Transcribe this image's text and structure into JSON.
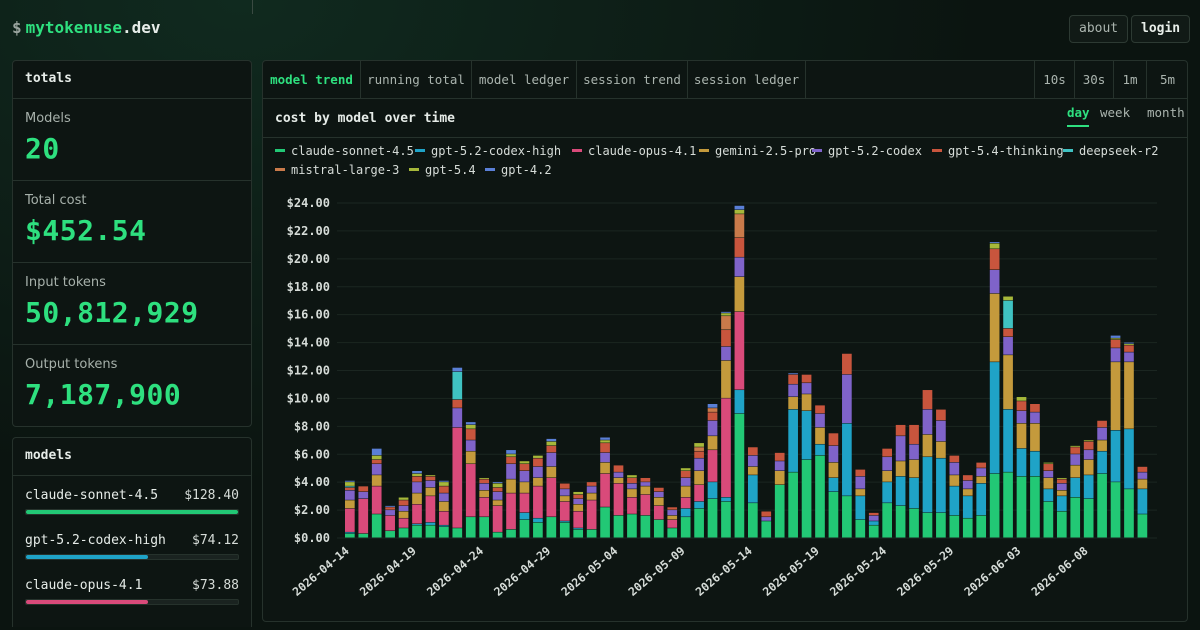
{
  "header": {
    "prompt": "$",
    "brand_name": "mytokenuse",
    "brand_tld": ".dev",
    "about_label": "about",
    "login_label": "login"
  },
  "totals": {
    "title": "totals",
    "stats": [
      {
        "label": "Models",
        "value": "20"
      },
      {
        "label": "Total cost",
        "value": "$452.54"
      },
      {
        "label": "Input tokens",
        "value": "50,812,929"
      },
      {
        "label": "Output tokens",
        "value": "7,187,900"
      }
    ]
  },
  "models_panel": {
    "title": "models",
    "items": [
      {
        "name": "claude-sonnet-4.5",
        "cost": "$128.40",
        "share": 1.0,
        "color": "#22c875"
      },
      {
        "name": "gpt-5.2-codex-high",
        "cost": "$74.12",
        "share": 0.577,
        "color": "#1fa3c7"
      },
      {
        "name": "claude-opus-4.1",
        "cost": "$73.88",
        "share": 0.575,
        "color": "#d94a7a"
      }
    ]
  },
  "tabs": [
    {
      "label": "model trend",
      "active": true
    },
    {
      "label": "running total",
      "active": false
    },
    {
      "label": "model ledger",
      "active": false
    },
    {
      "label": "session trend",
      "active": false
    },
    {
      "label": "session ledger",
      "active": false
    }
  ],
  "refresh_options": [
    "10s",
    "30s",
    "1m",
    "5m"
  ],
  "chart_panel": {
    "title": "cost by model over time",
    "ranges": [
      {
        "label": "day",
        "active": true
      },
      {
        "label": "week",
        "active": false
      },
      {
        "label": "month",
        "active": false
      }
    ]
  },
  "colors": {
    "accent": "#2ee07f",
    "background": "#0b1410",
    "panel_border": "#26322c"
  },
  "chart_data": {
    "type": "bar",
    "stacked": true,
    "title": "cost by model over time",
    "xlabel": "",
    "ylabel": "",
    "ylim": [
      0,
      24
    ],
    "y_ticks": [
      "$0.00",
      "$2.00",
      "$4.00",
      "$6.00",
      "$8.00",
      "$10.00",
      "$12.00",
      "$14.00",
      "$16.00",
      "$18.00",
      "$20.00",
      "$22.00",
      "$24.00"
    ],
    "x_tick_labels": [
      "2026-04-14",
      "2026-04-19",
      "2026-04-24",
      "2026-04-29",
      "2026-05-04",
      "2026-05-09",
      "2026-05-14",
      "2026-05-19",
      "2026-05-24",
      "2026-05-29",
      "2026-06-03",
      "2026-06-08"
    ],
    "first_date": "2026-04-14",
    "legend_position": "top",
    "grid": true,
    "series": [
      {
        "name": "claude-sonnet-4.5",
        "color": "#22c875",
        "values": [
          0.3,
          0.3,
          1.7,
          0.5,
          0.7,
          0.9,
          0.9,
          0.8,
          0.7,
          1.5,
          1.5,
          0.4,
          0.6,
          1.3,
          1.1,
          1.5,
          1.1,
          0.6,
          0.6,
          2.2,
          1.6,
          1.7,
          1.6,
          1.3,
          0.7,
          1.5,
          2.1,
          2.8,
          2.6,
          8.9,
          2.5,
          1.2,
          3.8,
          4.7,
          5.6,
          5.9,
          3.3,
          3.0,
          1.3,
          0.9,
          2.5,
          2.3,
          2.1,
          1.8,
          1.8,
          1.6,
          1.4,
          1.6,
          4.6,
          4.7,
          4.4,
          4.4,
          2.6,
          1.9,
          2.9,
          2.8,
          4.6,
          4.0,
          3.5,
          1.7
        ]
      },
      {
        "name": "gpt-5.2-codex-high",
        "color": "#1fa3c7",
        "values": [
          0.1,
          0,
          0,
          0,
          0,
          0.1,
          0.2,
          0.1,
          0,
          0,
          0,
          0,
          0,
          0.5,
          0.3,
          0,
          0.1,
          0.1,
          0,
          0,
          0,
          0,
          0,
          0,
          0,
          0.6,
          0.5,
          1.2,
          0.3,
          1.7,
          2.0,
          0,
          0,
          4.5,
          3.5,
          0.8,
          1.0,
          5.2,
          1.7,
          0.3,
          1.5,
          2.1,
          2.2,
          4.0,
          3.9,
          2.1,
          1.6,
          2.3,
          8.0,
          4.5,
          2.0,
          1.8,
          0.9,
          1.1,
          1.4,
          1.7,
          1.6,
          3.7,
          4.3,
          1.8
        ]
      },
      {
        "name": "claude-opus-4.1",
        "color": "#d94a7a",
        "values": [
          1.7,
          2.5,
          2.0,
          1.1,
          0.7,
          1.4,
          1.9,
          1.0,
          7.2,
          3.8,
          1.4,
          1.9,
          2.6,
          1.4,
          2.3,
          2.8,
          1.4,
          1.2,
          2.1,
          2.4,
          2.3,
          1.2,
          1.5,
          1.0,
          0.6,
          0.8,
          1.2,
          2.3,
          7.1,
          5.6,
          0,
          0,
          0,
          0,
          0,
          0,
          0,
          0,
          0,
          0,
          0,
          0,
          0,
          0,
          0,
          0,
          0,
          0,
          0,
          0,
          0,
          0,
          0,
          0,
          0,
          0,
          0,
          0,
          0,
          0
        ]
      },
      {
        "name": "gemini-2.5-pro",
        "color": "#c49a3c",
        "values": [
          0.6,
          0,
          0.8,
          0,
          0.5,
          0.8,
          0.6,
          0.7,
          0,
          0.9,
          0.5,
          0.4,
          1.0,
          0.8,
          0.6,
          0.8,
          0.4,
          0.5,
          0.5,
          0.8,
          0.4,
          0.6,
          0.6,
          0.6,
          0.3,
          0.8,
          1.0,
          1.0,
          2.7,
          2.5,
          0.6,
          0,
          1.0,
          0.9,
          1.2,
          1.2,
          1.1,
          0,
          0.5,
          0,
          0.8,
          1.1,
          1.3,
          1.6,
          1.2,
          0.8,
          0.5,
          0.5,
          4.9,
          3.9,
          1.8,
          2.0,
          0.8,
          0.4,
          0.9,
          1.1,
          0.8,
          4.9,
          4.8,
          0.7
        ]
      },
      {
        "name": "gpt-5.2-codex",
        "color": "#7f63c9",
        "values": [
          0.7,
          0.5,
          0.8,
          0.4,
          0.4,
          0.8,
          0.5,
          0.6,
          1.4,
          0.8,
          0.5,
          0.6,
          1.1,
          0.8,
          0.8,
          1.0,
          0.5,
          0.4,
          0.5,
          0.7,
          0.4,
          0.4,
          0.3,
          0.4,
          0.4,
          0.6,
          0.9,
          1.1,
          1.0,
          1.4,
          0.8,
          0.3,
          0.7,
          0.9,
          0.8,
          1.0,
          1.2,
          3.5,
          0.9,
          0.4,
          1.0,
          1.8,
          1.1,
          1.8,
          1.5,
          0.9,
          0.6,
          0.6,
          1.7,
          1.3,
          0.9,
          0.8,
          0.5,
          0.5,
          0.8,
          0.7,
          0.9,
          1.0,
          0.7,
          0.5
        ]
      },
      {
        "name": "gpt-5.4-thinking",
        "color": "#c8553d",
        "values": [
          0.2,
          0.4,
          0.3,
          0.2,
          0.4,
          0.4,
          0.3,
          0.5,
          0.6,
          0.8,
          0.3,
          0.3,
          0.5,
          0.5,
          0.6,
          0.5,
          0.4,
          0.3,
          0.3,
          0.7,
          0.5,
          0.4,
          0.3,
          0.3,
          0.2,
          0.5,
          0.5,
          0.6,
          1.2,
          1.4,
          0.6,
          0.4,
          0.6,
          0.7,
          0.6,
          0.6,
          0.9,
          1.5,
          0.5,
          0.2,
          0.6,
          0.8,
          1.4,
          1.4,
          0.8,
          0.5,
          0.4,
          0.4,
          1.5,
          0.6,
          0.7,
          0.6,
          0.5,
          0.3,
          0.5,
          0.6,
          0.5,
          0.6,
          0.5,
          0.4
        ]
      },
      {
        "name": "deepseek-r2",
        "color": "#3fc2c2",
        "values": [
          0.1,
          0,
          0,
          0,
          0,
          0,
          0,
          0,
          2.0,
          0,
          0,
          0,
          0,
          0,
          0,
          0,
          0,
          0,
          0,
          0,
          0,
          0,
          0,
          0,
          0,
          0,
          0,
          0,
          0,
          0,
          0,
          0,
          0,
          0,
          0,
          0,
          0,
          0,
          0,
          0,
          0,
          0,
          0,
          0,
          0,
          0,
          0,
          0,
          0,
          2.0,
          0,
          0,
          0,
          0,
          0,
          0,
          0,
          0,
          0,
          0
        ]
      },
      {
        "name": "mistral-large-3",
        "color": "#c97a4a",
        "values": [
          0,
          0,
          0,
          0,
          0,
          0,
          0,
          0,
          0,
          0,
          0,
          0,
          0,
          0,
          0,
          0,
          0,
          0,
          0,
          0,
          0,
          0,
          0,
          0,
          0,
          0,
          0.3,
          0.3,
          1.0,
          1.7,
          0,
          0,
          0,
          0,
          0,
          0,
          0,
          0,
          0,
          0,
          0,
          0,
          0,
          0,
          0,
          0,
          0,
          0,
          0,
          0,
          0,
          0,
          0,
          0,
          0,
          0,
          0,
          0,
          0,
          0
        ]
      },
      {
        "name": "gpt-5.4",
        "color": "#a6b83a",
        "values": [
          0.3,
          0,
          0.3,
          0,
          0.2,
          0.2,
          0.1,
          0.3,
          0,
          0.3,
          0.1,
          0.3,
          0.2,
          0.2,
          0.2,
          0.3,
          0,
          0.2,
          0,
          0.2,
          0,
          0.2,
          0,
          0,
          0,
          0.2,
          0.3,
          0,
          0.2,
          0.3,
          0,
          0,
          0,
          0,
          0,
          0,
          0,
          0,
          0,
          0,
          0,
          0,
          0,
          0,
          0,
          0,
          0,
          0,
          0.4,
          0.3,
          0.3,
          0,
          0.1,
          0.1,
          0.1,
          0.1,
          0,
          0.1,
          0.1,
          0
        ]
      },
      {
        "name": "gpt-4.2",
        "color": "#5a7fd6",
        "values": [
          0.1,
          0,
          0.5,
          0.1,
          0,
          0.2,
          0,
          0.1,
          0.3,
          0.2,
          0,
          0.1,
          0.3,
          0,
          0,
          0.2,
          0,
          0,
          0,
          0.2,
          0,
          0,
          0,
          0,
          0,
          0,
          0,
          0.3,
          0.1,
          0.3,
          0,
          0,
          0,
          0.1,
          0,
          0,
          0,
          0,
          0,
          0,
          0,
          0,
          0,
          0,
          0,
          0,
          0,
          0,
          0.1,
          0,
          0,
          0,
          0,
          0,
          0,
          0,
          0,
          0.2,
          0.1,
          0
        ]
      }
    ]
  }
}
